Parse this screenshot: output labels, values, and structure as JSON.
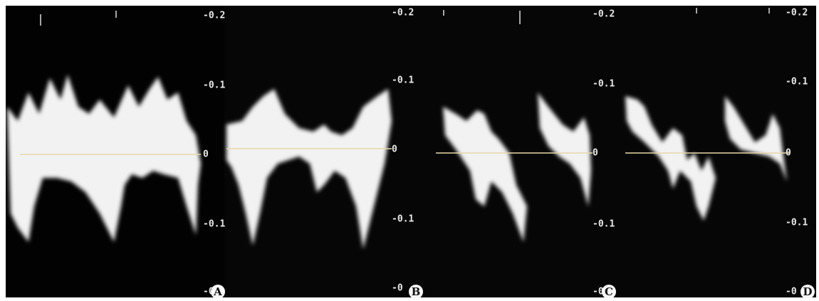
{
  "panels": [
    {
      "label": "A",
      "scale": [
        "-0.2",
        "-0.1",
        "0",
        "-0.1",
        "-0"
      ]
    },
    {
      "label": "B",
      "scale": [
        "-0.2",
        "-0.1",
        "0",
        "-0.1",
        "-0"
      ]
    },
    {
      "label": "C",
      "scale": [
        "-0.2",
        "-0.1",
        "0",
        "-0.1",
        "-0"
      ]
    },
    {
      "label": "D",
      "scale": [
        "-0.2",
        "-0.1",
        "0",
        "-0.1",
        "-0"
      ]
    }
  ]
}
